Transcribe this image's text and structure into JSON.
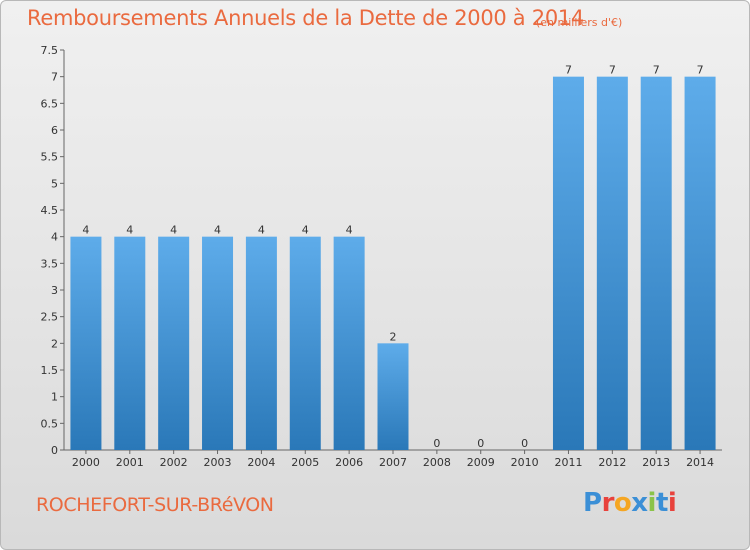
{
  "header": {
    "title": "Remboursements Annuels de la Dette de 2000 à 2014",
    "unit": "(en milliers d'€)"
  },
  "footer": {
    "commune": "ROCHEFORT-SUR-BRéVON",
    "logo_text": "Proxiti",
    "logo_colors": [
      "#3b8fd6",
      "#e8423c",
      "#f5a623",
      "#3b8fd6",
      "#8bc34a",
      "#3b8fd6",
      "#e8423c"
    ]
  },
  "colors": {
    "bar_top": "#5eacea",
    "bar_bottom": "#2a78b8",
    "title": "#ea6a3f",
    "axis_text": "#333333"
  },
  "chart_data": {
    "type": "bar",
    "categories": [
      "2000",
      "2001",
      "2002",
      "2003",
      "2004",
      "2005",
      "2006",
      "2007",
      "2008",
      "2009",
      "2010",
      "2011",
      "2012",
      "2013",
      "2014"
    ],
    "values": [
      4,
      4,
      4,
      4,
      4,
      4,
      4,
      2,
      0,
      0,
      0,
      7,
      7,
      7,
      7
    ],
    "value_labels": [
      "4",
      "4",
      "4",
      "4",
      "4",
      "4",
      "4",
      "2",
      "0",
      "0",
      "0",
      "7",
      "7",
      "7",
      "7"
    ],
    "yticks": [
      "0",
      "0.5",
      "1",
      "1.5",
      "2",
      "2.5",
      "3",
      "3.5",
      "4",
      "4.5",
      "5",
      "5.5",
      "6",
      "6.5",
      "7",
      "7.5"
    ],
    "ylim": [
      0,
      7.5
    ],
    "grid": false,
    "legend": "none"
  }
}
